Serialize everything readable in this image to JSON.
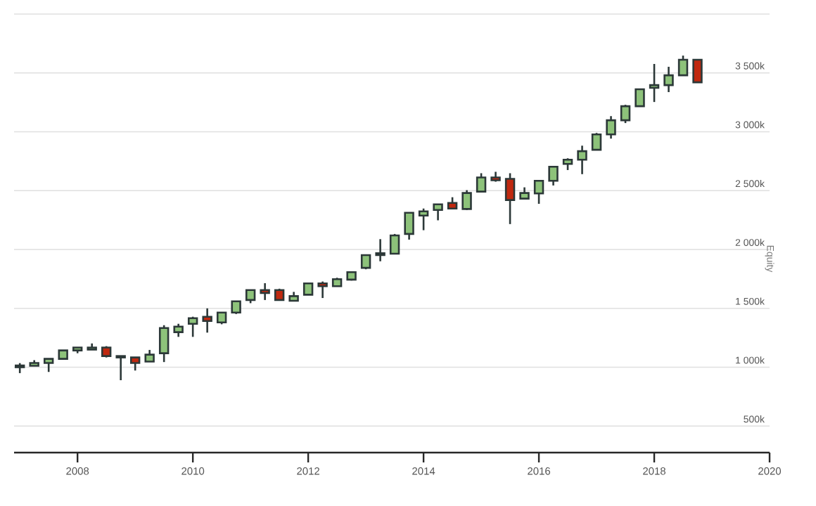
{
  "chart_data": {
    "type": "candlestick",
    "ylabel": "Equity",
    "x": [
      2007,
      2007.25,
      2007.5,
      2007.75,
      2008,
      2008.25,
      2008.5,
      2008.75,
      2009,
      2009.25,
      2009.5,
      2009.75,
      2010,
      2010.25,
      2010.5,
      2010.75,
      2011,
      2011.25,
      2011.5,
      2011.75,
      2012,
      2012.25,
      2012.5,
      2012.75,
      2013,
      2013.25,
      2013.5,
      2013.75,
      2014,
      2014.25,
      2014.5,
      2014.75,
      2015,
      2015.25,
      2015.5,
      2015.75,
      2016,
      2016.25,
      2016.5,
      2016.75,
      2017,
      2017.25,
      2017.5,
      2017.75,
      2018,
      2018.25,
      2018.5,
      2018.75
    ],
    "ohlc": [
      [
        1000,
        1035,
        950,
        1015
      ],
      [
        1012,
        1060,
        1012,
        1036
      ],
      [
        1036,
        1071,
        960,
        1071
      ],
      [
        1071,
        1143,
        1071,
        1143
      ],
      [
        1143,
        1167,
        1119,
        1167
      ],
      [
        1150,
        1202,
        1150,
        1167
      ],
      [
        1167,
        1179,
        1083,
        1095
      ],
      [
        1095,
        1095,
        890,
        1083
      ],
      [
        1083,
        1083,
        972,
        1036
      ],
      [
        1048,
        1147,
        1048,
        1107
      ],
      [
        1119,
        1357,
        1044,
        1333
      ],
      [
        1298,
        1369,
        1258,
        1345
      ],
      [
        1369,
        1429,
        1258,
        1417
      ],
      [
        1429,
        1500,
        1294,
        1393
      ],
      [
        1381,
        1464,
        1365,
        1464
      ],
      [
        1464,
        1560,
        1452,
        1560
      ],
      [
        1571,
        1655,
        1544,
        1655
      ],
      [
        1655,
        1714,
        1571,
        1631
      ],
      [
        1655,
        1667,
        1571,
        1571
      ],
      [
        1564,
        1640,
        1564,
        1604
      ],
      [
        1616,
        1712,
        1616,
        1712
      ],
      [
        1712,
        1728,
        1588,
        1688
      ],
      [
        1688,
        1760,
        1688,
        1748
      ],
      [
        1744,
        1808,
        1736,
        1808
      ],
      [
        1844,
        1952,
        1832,
        1952
      ],
      [
        1952,
        2088,
        1900,
        1968
      ],
      [
        1964,
        2132,
        1964,
        2120
      ],
      [
        2132,
        2312,
        2084,
        2312
      ],
      [
        2288,
        2348,
        2164,
        2324
      ],
      [
        2336,
        2384,
        2248,
        2384
      ],
      [
        2396,
        2444,
        2348,
        2348
      ],
      [
        2344,
        2504,
        2336,
        2480
      ],
      [
        2492,
        2648,
        2492,
        2612
      ],
      [
        2612,
        2660,
        2576,
        2588
      ],
      [
        2600,
        2648,
        2216,
        2420
      ],
      [
        2432,
        2528,
        2432,
        2480
      ],
      [
        2476,
        2584,
        2388,
        2584
      ],
      [
        2584,
        2703,
        2544,
        2703
      ],
      [
        2727,
        2775,
        2675,
        2763
      ],
      [
        2763,
        2882,
        2640,
        2835
      ],
      [
        2847,
        2990,
        2847,
        2978
      ],
      [
        2978,
        3133,
        2942,
        3098
      ],
      [
        3098,
        3229,
        3074,
        3217
      ],
      [
        3217,
        3361,
        3217,
        3361
      ],
      [
        3373,
        3576,
        3253,
        3396
      ],
      [
        3396,
        3552,
        3337,
        3480
      ],
      [
        3480,
        3647,
        3480,
        3612
      ],
      [
        3612,
        3612,
        3420,
        3420
      ]
    ],
    "colors": [
      "#8dc27a",
      "#8dc27a",
      "#8dc27a",
      "#8dc27a",
      "#8dc27a",
      "#8dc27a",
      "#c0280f",
      "#c0280f",
      "#c0280f",
      "#8dc27a",
      "#8dc27a",
      "#8dc27a",
      "#8dc27a",
      "#c0280f",
      "#8dc27a",
      "#8dc27a",
      "#8dc27a",
      "#c0280f",
      "#c0280f",
      "#8dc27a",
      "#8dc27a",
      "#c0280f",
      "#8dc27a",
      "#8dc27a",
      "#8dc27a",
      "#8dc27a",
      "#8dc27a",
      "#8dc27a",
      "#8dc27a",
      "#8dc27a",
      "#c0280f",
      "#8dc27a",
      "#8dc27a",
      "#c0280f",
      "#c0280f",
      "#8dc27a",
      "#8dc27a",
      "#8dc27a",
      "#8dc27a",
      "#8dc27a",
      "#8dc27a",
      "#8dc27a",
      "#8dc27a",
      "#8dc27a",
      "#8dc27a",
      "#8dc27a",
      "#8dc27a",
      "#c0280f"
    ],
    "xlim": [
      2006.9,
      2020
    ],
    "xticks": [
      2008,
      2010,
      2012,
      2014,
      2016,
      2018,
      2020
    ],
    "ylim": [
      275,
      4000
    ],
    "yticks": [
      {
        "value": 500,
        "label": "500k"
      },
      {
        "value": 1000,
        "label": "1 000k"
      },
      {
        "value": 1500,
        "label": "1 500k"
      },
      {
        "value": 2000,
        "label": "2 000k"
      },
      {
        "value": 2500,
        "label": "2 500k"
      },
      {
        "value": 3000,
        "label": "3 000k"
      },
      {
        "value": 3500,
        "label": "3 500k"
      },
      {
        "value": 4000,
        "label": null
      }
    ],
    "grid": "y"
  }
}
